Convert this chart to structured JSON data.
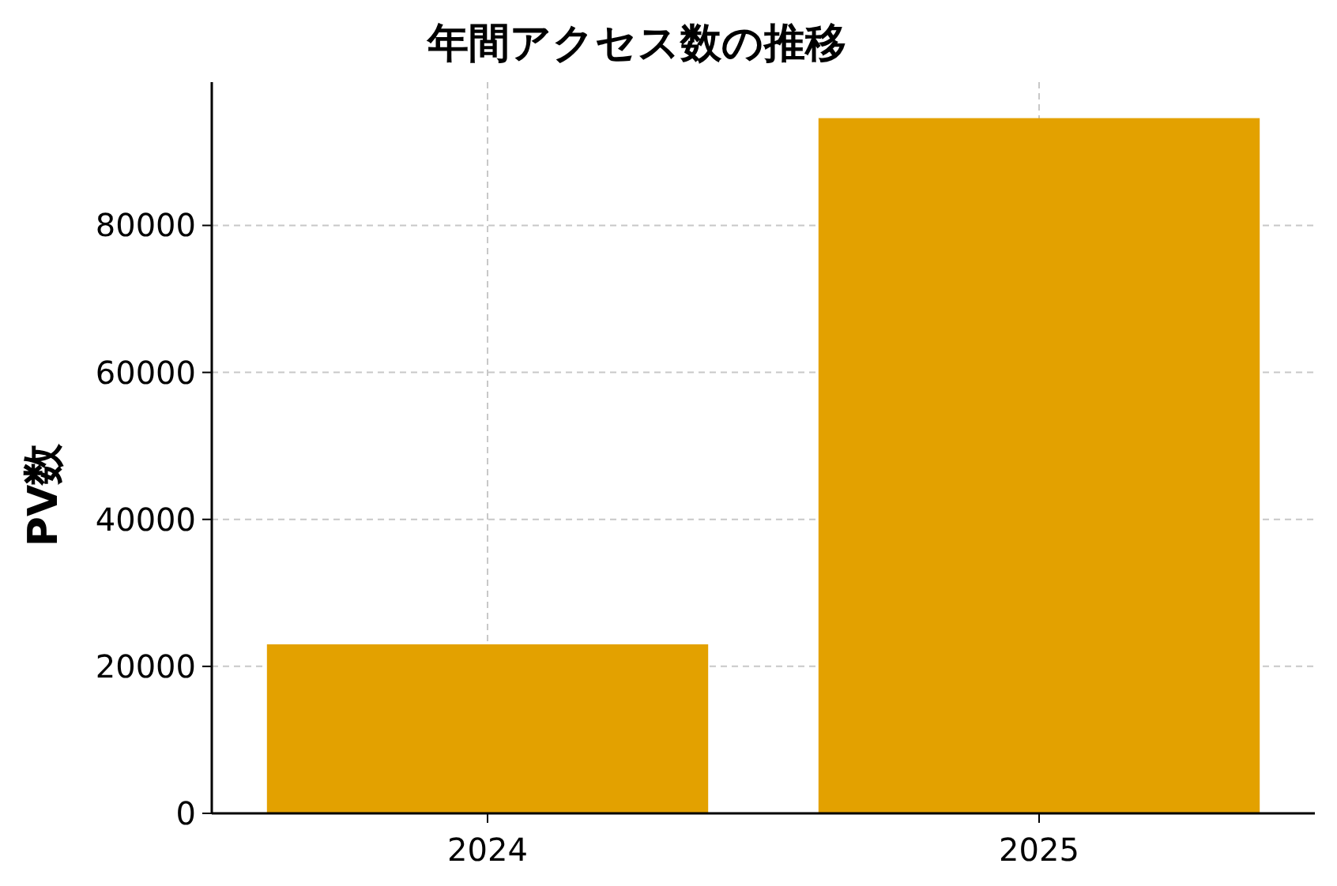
{
  "chart_data": {
    "type": "bar",
    "title": "年間アクセス数の推移",
    "ylabel": "PV数",
    "categories": [
      "2024",
      "2025"
    ],
    "values": [
      23000,
      94600
    ],
    "color": "#e3a100",
    "ylim": [
      0,
      99500
    ],
    "yticks": [
      0,
      20000,
      40000,
      60000,
      80000
    ],
    "grid": true
  }
}
